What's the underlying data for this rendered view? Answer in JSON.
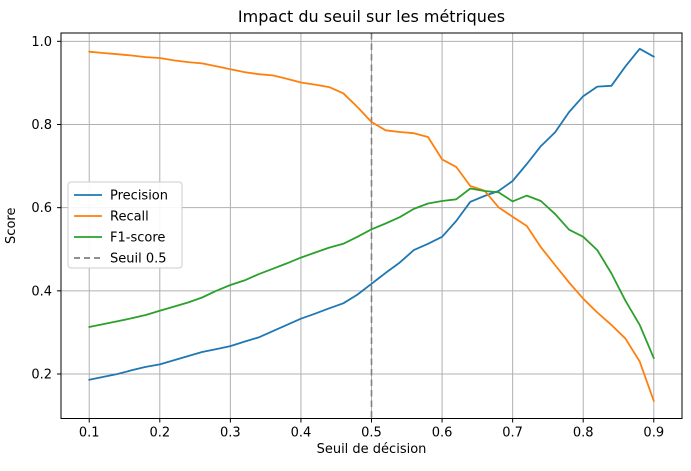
{
  "chart_data": {
    "type": "line",
    "title": "Impact du seuil sur les métriques",
    "xlabel": "Seuil de décision",
    "ylabel": "Score",
    "xlim": [
      0.06,
      0.94
    ],
    "ylim": [
      0.093,
      1.02
    ],
    "xticks": [
      0.1,
      0.2,
      0.3,
      0.4,
      0.5,
      0.6,
      0.7,
      0.8,
      0.9
    ],
    "yticks": [
      0.2,
      0.4,
      0.6,
      0.8,
      1.0
    ],
    "grid": true,
    "legend_position": "center-left",
    "x": [
      0.1,
      0.12,
      0.14,
      0.16,
      0.18,
      0.2,
      0.22,
      0.24,
      0.26,
      0.28,
      0.3,
      0.32,
      0.34,
      0.36,
      0.38,
      0.4,
      0.42,
      0.44,
      0.46,
      0.48,
      0.5,
      0.52,
      0.54,
      0.56,
      0.58,
      0.6,
      0.62,
      0.64,
      0.66,
      0.68,
      0.7,
      0.72,
      0.74,
      0.76,
      0.78,
      0.8,
      0.82,
      0.84,
      0.86,
      0.88,
      0.9
    ],
    "series": [
      {
        "name": "Precision",
        "color": "#1f77b4",
        "style": "solid",
        "values": [
          0.186,
          0.193,
          0.2,
          0.209,
          0.217,
          0.223,
          0.233,
          0.243,
          0.253,
          0.26,
          0.267,
          0.278,
          0.288,
          0.303,
          0.318,
          0.333,
          0.345,
          0.358,
          0.37,
          0.391,
          0.417,
          0.443,
          0.468,
          0.498,
          0.513,
          0.53,
          0.568,
          0.614,
          0.628,
          0.64,
          0.664,
          0.705,
          0.748,
          0.781,
          0.83,
          0.868,
          0.891,
          0.893,
          0.94,
          0.982,
          0.963
        ]
      },
      {
        "name": "Recall",
        "color": "#ff7f0e",
        "style": "solid",
        "values": [
          0.975,
          0.972,
          0.969,
          0.966,
          0.962,
          0.96,
          0.954,
          0.95,
          0.947,
          0.94,
          0.933,
          0.926,
          0.921,
          0.918,
          0.91,
          0.901,
          0.896,
          0.89,
          0.875,
          0.842,
          0.806,
          0.786,
          0.782,
          0.779,
          0.77,
          0.716,
          0.698,
          0.652,
          0.641,
          0.601,
          0.578,
          0.556,
          0.505,
          0.462,
          0.42,
          0.381,
          0.348,
          0.318,
          0.285,
          0.23,
          0.135
        ]
      },
      {
        "name": "F1-score",
        "color": "#2ca02c",
        "style": "solid",
        "values": [
          0.313,
          0.32,
          0.327,
          0.334,
          0.342,
          0.352,
          0.362,
          0.372,
          0.384,
          0.4,
          0.414,
          0.425,
          0.44,
          0.453,
          0.466,
          0.48,
          0.492,
          0.504,
          0.513,
          0.53,
          0.548,
          0.562,
          0.577,
          0.597,
          0.61,
          0.616,
          0.62,
          0.646,
          0.64,
          0.637,
          0.615,
          0.629,
          0.616,
          0.585,
          0.547,
          0.53,
          0.498,
          0.442,
          0.376,
          0.318,
          0.238
        ]
      }
    ],
    "threshold_line": {
      "label": "Seuil 0.5",
      "x": 0.5,
      "color": "#808080",
      "style": "dashed"
    },
    "legend_entries": [
      "Precision",
      "Recall",
      "F1-score",
      "Seuil 0.5"
    ]
  },
  "colors": {
    "background": "#ffffff",
    "grid": "#b0b0b0",
    "axis": "#000000",
    "legend_border": "#cccccc",
    "legend_background": "#ffffff"
  }
}
